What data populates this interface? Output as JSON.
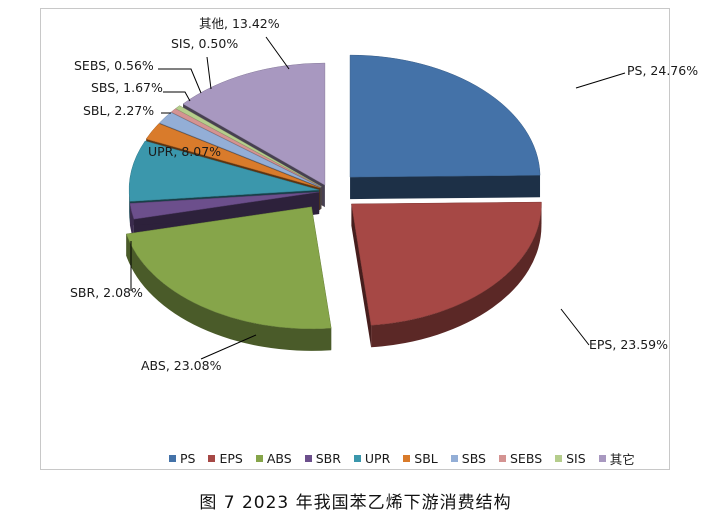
{
  "caption": "图 7  2023 年我国苯乙烯下游消费结构",
  "chart_data": {
    "type": "pie",
    "style": "3d-exploded",
    "legend_position": "bottom",
    "slices": [
      {
        "name": "PS",
        "value": 24.76,
        "label": "PS, 24.76%",
        "color": "#4472a8",
        "legend": "PS"
      },
      {
        "name": "EPS",
        "value": 23.59,
        "label": "EPS, 23.59%",
        "color": "#a64845",
        "legend": "EPS"
      },
      {
        "name": "ABS",
        "value": 23.08,
        "label": "ABS, 23.08%",
        "color": "#86a54a",
        "legend": "ABS"
      },
      {
        "name": "SBR",
        "value": 2.08,
        "label": "SBR, 2.08%",
        "color": "#6c4f8c",
        "legend": "SBR"
      },
      {
        "name": "UPR",
        "value": 8.07,
        "label": "UPR, 8.07%",
        "color": "#3b97ac",
        "legend": "UPR"
      },
      {
        "name": "SBL",
        "value": 2.27,
        "label": "SBL, 2.27%",
        "color": "#d97b2b",
        "legend": "SBL"
      },
      {
        "name": "SBS",
        "value": 1.67,
        "label": "SBS, 1.67%",
        "color": "#93aed6",
        "legend": "SBS"
      },
      {
        "name": "SEBS",
        "value": 0.56,
        "label": "SEBS, 0.56%",
        "color": "#d49392",
        "legend": "SEBS"
      },
      {
        "name": "SIS",
        "value": 0.5,
        "label": "SIS, 0.50%",
        "color": "#b5cd8c",
        "legend": "SIS"
      },
      {
        "name": "其他",
        "value": 13.42,
        "label": "其他, 13.42%",
        "color": "#a898c0",
        "legend": "其它"
      }
    ]
  }
}
